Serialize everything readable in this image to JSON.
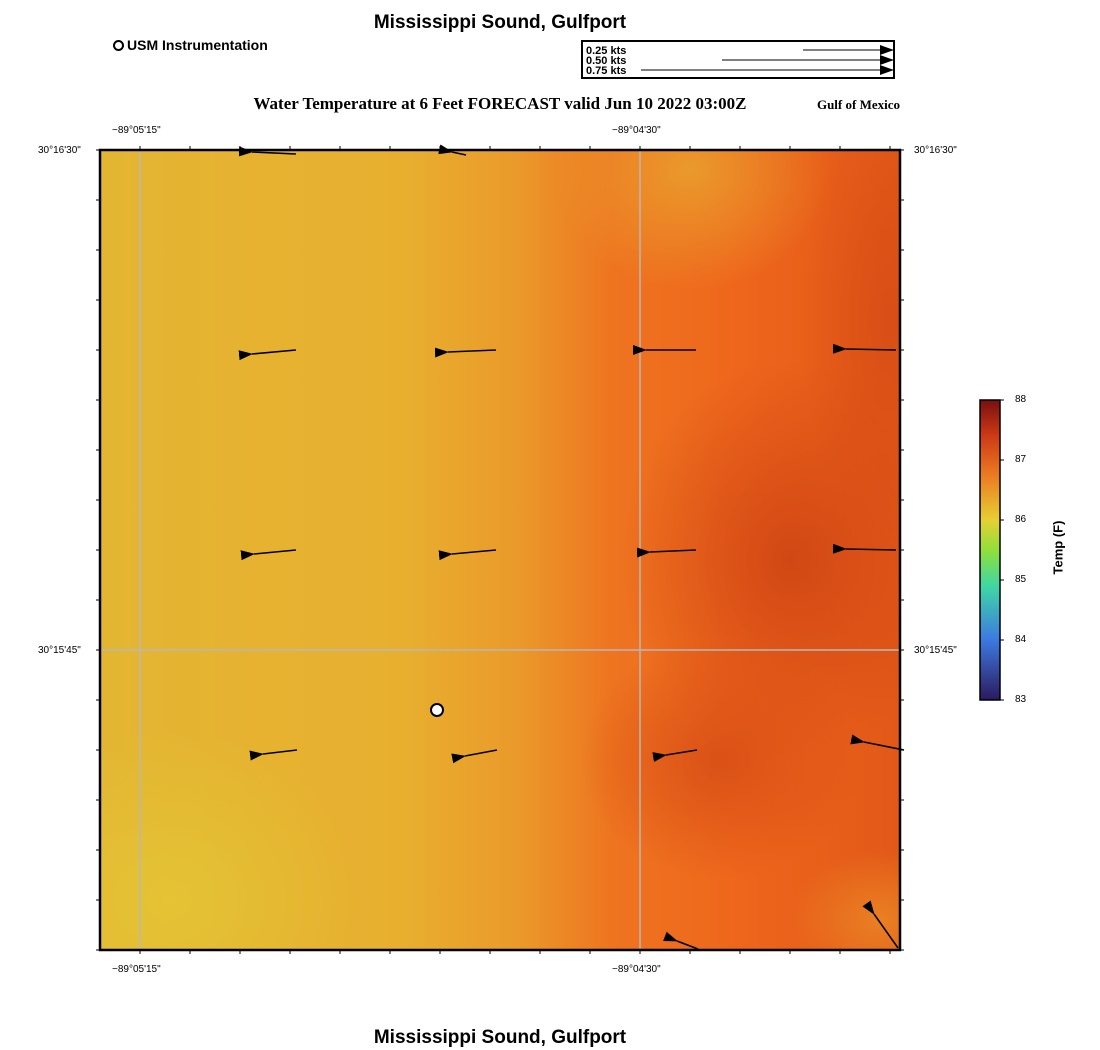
{
  "header": {
    "title": "Mississippi Sound, Gulfport",
    "subtitle": "Water Temperature at 6 Feet FORECAST valid Jun 10 2022 03:00Z",
    "region": "Gulf of Mexico"
  },
  "footer": {
    "title": "Mississippi Sound, Gulfport"
  },
  "legend": {
    "station_label": "USM Instrumentation",
    "vectors": [
      {
        "label": "0.25 kts",
        "speed": 0.25
      },
      {
        "label": "0.50 kts",
        "speed": 0.5
      },
      {
        "label": "0.75 kts",
        "speed": 0.75
      }
    ]
  },
  "map": {
    "lon_labels": [
      "−89°05'15\"",
      "−89°04'30\""
    ],
    "lat_labels": [
      "30°16'30\"",
      "30°15'45\""
    ],
    "station_marker": "open-circle",
    "field_colors": {
      "cool": "#e2be30",
      "mid": "#e9a72a",
      "warm": "#ee6a1b",
      "hot": "#d94a14"
    },
    "grid_color": "#b8b8b8",
    "arrow_color": "#000000"
  },
  "colorbar": {
    "title": "Temp (F)",
    "min": 83,
    "max": 88,
    "ticks": [
      "83",
      "84",
      "85",
      "86",
      "87",
      "88"
    ],
    "stops": [
      "#2b1a5e",
      "#3d79e0",
      "#3fd7a4",
      "#90e03b",
      "#e6cf34",
      "#eb7a22",
      "#cd3a16",
      "#7a0f0f"
    ]
  }
}
